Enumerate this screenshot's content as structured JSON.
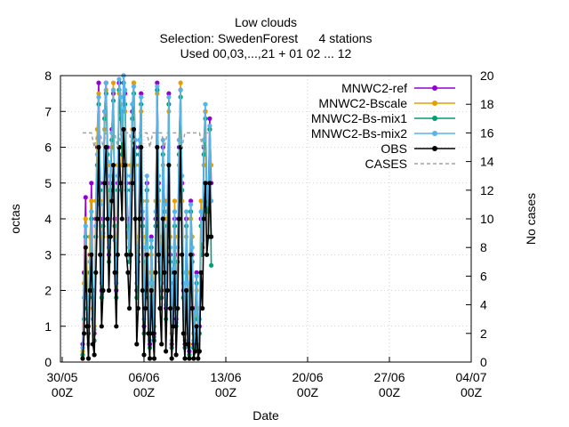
{
  "chart_data": {
    "type": "line",
    "title_lines": [
      "Low clouds",
      "Selection: SwedenForest      4 stations",
      "Used 00,03,...,21 + 01 02 ... 12"
    ],
    "xlabel": "Date",
    "ylabel": "octas",
    "y2label": "No cases",
    "x_ticks": [
      {
        "day": 30,
        "line1": "30/05",
        "line2": "00Z"
      },
      {
        "day": 37,
        "line1": "06/06",
        "line2": "00Z"
      },
      {
        "day": 44,
        "line1": "13/06",
        "line2": "00Z"
      },
      {
        "day": 51,
        "line1": "20/06",
        "line2": "00Z"
      },
      {
        "day": 58,
        "line1": "27/06",
        "line2": "00Z"
      },
      {
        "day": 65,
        "line1": "04/07",
        "line2": "00Z"
      }
    ],
    "xlim": [
      29.85,
      65
    ],
    "ylim": [
      0,
      8
    ],
    "y2lim": [
      0,
      20
    ],
    "y_ticks": [
      0,
      1,
      2,
      3,
      4,
      5,
      6,
      7,
      8
    ],
    "y2_ticks": [
      0,
      2,
      4,
      6,
      8,
      10,
      12,
      14,
      16,
      18,
      20
    ],
    "grid": true,
    "legend_position": "top-right",
    "series": [
      {
        "name": "MNWC2-ref",
        "color": "#9400d3",
        "axis": "y",
        "x_start": 31.75,
        "x_step": 0.125,
        "values": [
          0.5,
          2.5,
          4.6,
          2.0,
          1.0,
          3.0,
          5.0,
          2.0,
          0.8,
          4.0,
          6.0,
          7.8,
          5.0,
          2.0,
          4.0,
          7.0,
          7.8,
          6.0,
          3.0,
          5.0,
          6.5,
          7.5,
          4.0,
          2.0,
          5.0,
          7.8,
          7.0,
          6.0,
          8.0,
          7.5,
          5.0,
          4.0,
          3.0,
          5.0,
          7.0,
          7.8,
          6.0,
          2.0,
          3.0,
          6.0,
          7.5,
          4.0,
          1.0,
          3.0,
          5.0,
          2.0,
          0.5,
          3.5,
          2.0,
          0.8,
          4.0,
          7.8,
          5.0,
          3.0,
          2.0,
          6.0,
          4.5,
          1.5,
          4.0,
          7.5,
          3.0,
          0.5,
          2.5,
          4.0,
          1.2,
          3.0,
          6.0,
          7.6,
          5.0,
          2.0,
          0.5,
          4.0,
          2.0,
          0.3,
          4.5,
          3.0,
          0.5,
          1.5,
          2.5,
          0.5,
          1.0,
          4.0,
          3.2,
          6.0,
          7.0,
          4.5,
          4.5,
          6.8,
          5.0
        ]
      },
      {
        "name": "MNWC2-Bscale",
        "color": "#e69f00",
        "axis": "y",
        "x_start": 31.75,
        "x_step": 0.125,
        "values": [
          0.3,
          2.2,
          4.0,
          2.5,
          0.5,
          3.5,
          4.5,
          1.5,
          1.0,
          4.5,
          6.5,
          7.5,
          4.5,
          2.5,
          3.5,
          6.5,
          7.6,
          5.5,
          3.5,
          5.5,
          6.0,
          7.8,
          3.5,
          2.5,
          5.5,
          7.5,
          7.2,
          5.5,
          7.8,
          7.0,
          5.5,
          3.5,
          3.5,
          5.5,
          6.5,
          7.8,
          5.5,
          2.5,
          3.5,
          5.5,
          7.0,
          4.5,
          1.5,
          3.5,
          4.5,
          2.5,
          0.8,
          3.0,
          2.5,
          1.0,
          4.5,
          7.5,
          4.5,
          3.5,
          2.5,
          5.5,
          4.0,
          2.0,
          4.5,
          7.0,
          3.5,
          0.8,
          2.0,
          4.5,
          1.0,
          3.5,
          5.5,
          7.8,
          4.5,
          2.5,
          0.8,
          3.5,
          2.5,
          0.5,
          4.0,
          3.5,
          0.8,
          1.0,
          2.0,
          0.8,
          1.5,
          4.5,
          3.0,
          5.5,
          7.0,
          5.0,
          3.5,
          6.5,
          5.5
        ]
      },
      {
        "name": "MNWC2-Bs-mix1",
        "color": "#009e73",
        "axis": "y",
        "x_start": 31.75,
        "x_step": 0.125,
        "values": [
          0.2,
          1.2,
          3.5,
          1.5,
          0.8,
          2.5,
          4.0,
          1.8,
          0.6,
          3.5,
          5.5,
          7.2,
          4.8,
          1.8,
          3.8,
          6.8,
          7.5,
          5.8,
          2.8,
          4.8,
          6.2,
          7.3,
          3.8,
          1.8,
          4.8,
          7.6,
          6.8,
          5.8,
          7.8,
          7.2,
          4.8,
          3.8,
          2.8,
          4.8,
          6.8,
          7.5,
          5.8,
          1.8,
          2.8,
          5.8,
          7.2,
          3.8,
          0.8,
          2.8,
          4.8,
          1.8,
          0.4,
          3.2,
          1.8,
          0.6,
          3.8,
          7.6,
          4.8,
          2.8,
          1.8,
          5.8,
          4.2,
          1.2,
          3.8,
          7.2,
          2.8,
          0.4,
          2.2,
          3.8,
          1.0,
          2.8,
          5.8,
          7.4,
          4.8,
          1.8,
          0.4,
          3.8,
          1.8,
          0.2,
          4.2,
          2.8,
          0.4,
          1.2,
          2.2,
          0.4,
          0.8,
          3.8,
          3.0,
          5.8,
          6.8,
          4.2,
          4.2,
          6.5,
          2.7
        ]
      },
      {
        "name": "MNWC2-Bs-mix2",
        "color": "#56b4e9",
        "axis": "y",
        "x_start": 31.75,
        "x_step": 0.125,
        "values": [
          0.4,
          1.8,
          3.8,
          1.8,
          0.5,
          2.8,
          4.2,
          1.2,
          0.9,
          3.8,
          5.8,
          7.4,
          4.4,
          2.2,
          3.6,
          7.0,
          7.8,
          5.6,
          3.2,
          5.2,
          6.4,
          7.6,
          3.4,
          2.2,
          5.2,
          7.9,
          7.4,
          6.2,
          8.0,
          7.6,
          5.2,
          3.6,
          3.2,
          5.2,
          7.2,
          7.7,
          6.2,
          2.2,
          3.2,
          6.2,
          7.4,
          4.2,
          1.2,
          3.2,
          5.2,
          2.2,
          0.6,
          3.4,
          2.2,
          0.7,
          4.2,
          7.7,
          5.2,
          3.2,
          2.2,
          6.2,
          4.4,
          1.6,
          4.2,
          7.4,
          3.2,
          0.6,
          2.6,
          4.2,
          1.1,
          3.2,
          6.2,
          7.6,
          5.2,
          2.2,
          0.6,
          4.2,
          2.2,
          0.4,
          4.4,
          3.2,
          0.6,
          1.4,
          2.4,
          0.6,
          1.2,
          4.2,
          3.4,
          6.2,
          7.2,
          4.6,
          4.4,
          6.6,
          4.5
        ]
      },
      {
        "name": "OBS",
        "color": "#000000",
        "axis": "y",
        "x_start": 31.75,
        "x_step": 0.125,
        "values": [
          0.1,
          0.8,
          3.2,
          1.0,
          0.1,
          2.0,
          3.0,
          0.5,
          0.2,
          2.5,
          4.0,
          6.0,
          3.0,
          1.0,
          2.0,
          5.0,
          6.0,
          4.0,
          2.0,
          3.5,
          4.5,
          5.5,
          2.5,
          1.0,
          3.0,
          6.0,
          5.0,
          4.0,
          6.5,
          5.5,
          3.0,
          2.5,
          1.5,
          3.0,
          5.0,
          6.5,
          4.0,
          0.5,
          1.5,
          4.0,
          6.0,
          2.0,
          0.2,
          1.5,
          3.0,
          0.8,
          0.1,
          2.0,
          0.8,
          0.1,
          2.5,
          6.0,
          3.0,
          1.5,
          0.5,
          4.0,
          2.5,
          0.3,
          2.0,
          5.5,
          1.5,
          0.1,
          1.0,
          2.5,
          0.2,
          1.5,
          4.0,
          6.0,
          3.0,
          0.8,
          0.1,
          2.0,
          0.5,
          0.1,
          3.0,
          1.5,
          0.1,
          0.3,
          1.0,
          0.1,
          0.3,
          2.5,
          1.5,
          4.0,
          5.0,
          3.0,
          3.5,
          5.0,
          3.5
        ]
      },
      {
        "name": "CASES",
        "color": "#a0a0a0",
        "axis": "y2",
        "dashed": true,
        "x_start": 31.75,
        "x_step": 0.25,
        "values": [
          16,
          16,
          16,
          16,
          15,
          16,
          16,
          15,
          16,
          16,
          16,
          16,
          15,
          16,
          16,
          16,
          16,
          15,
          16,
          16,
          16,
          16,
          16,
          15,
          16,
          16,
          16,
          16,
          15,
          16,
          16,
          16,
          16,
          16,
          15,
          16,
          16,
          16,
          16,
          16,
          16,
          15,
          16,
          16
        ]
      }
    ]
  }
}
